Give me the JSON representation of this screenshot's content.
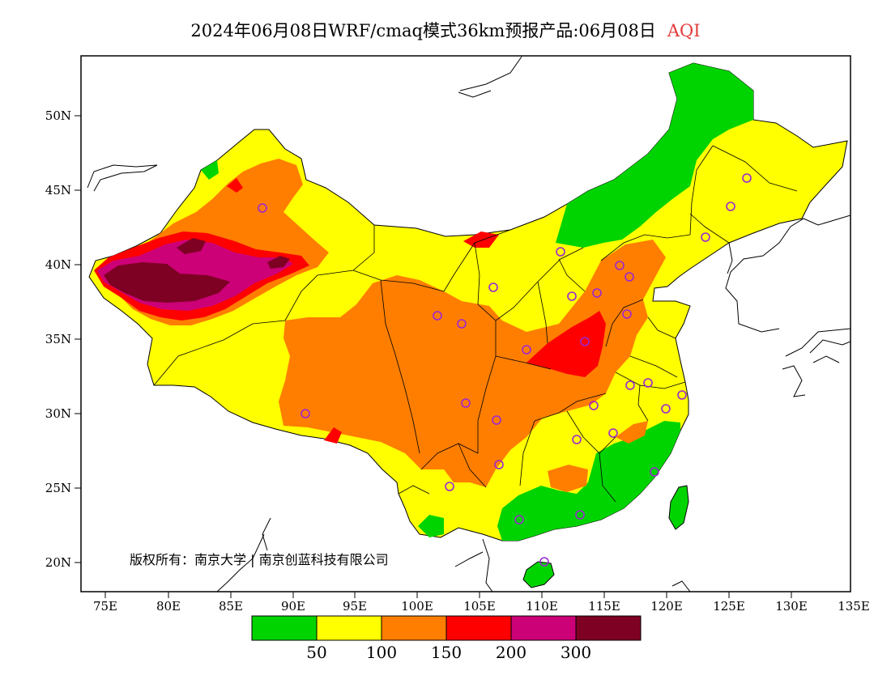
{
  "title": {
    "main": "2024年06月08日WRF/cmaq模式36km预报产品:06月08日",
    "variable": "AQI",
    "variable_color": "#e23b3b"
  },
  "axes": {
    "lon_labels": [
      "75E",
      "80E",
      "85E",
      "90E",
      "95E",
      "100E",
      "105E",
      "110E",
      "115E",
      "120E",
      "125E",
      "130E",
      "135E"
    ],
    "lat_labels": [
      "20N",
      "25N",
      "30N",
      "35N",
      "40N",
      "45N",
      "50N"
    ]
  },
  "copyright": "版权所有：南京大学 | 南京创蓝科技有限公司",
  "colorbar": {
    "colors": [
      "#00d400",
      "#ffff00",
      "#ff7e00",
      "#ff0000",
      "#cc0077",
      "#7e0023"
    ],
    "labels": [
      "50",
      "100",
      "150",
      "200",
      "300"
    ]
  },
  "palette": {
    "good": "#00d400",
    "moderate": "#ffff00",
    "sensitive": "#ff7e00",
    "unhealthy": "#ff0000",
    "very_unhealthy": "#cc0077",
    "hazardous": "#7e0023",
    "station_marker": "#9c27d0"
  }
}
